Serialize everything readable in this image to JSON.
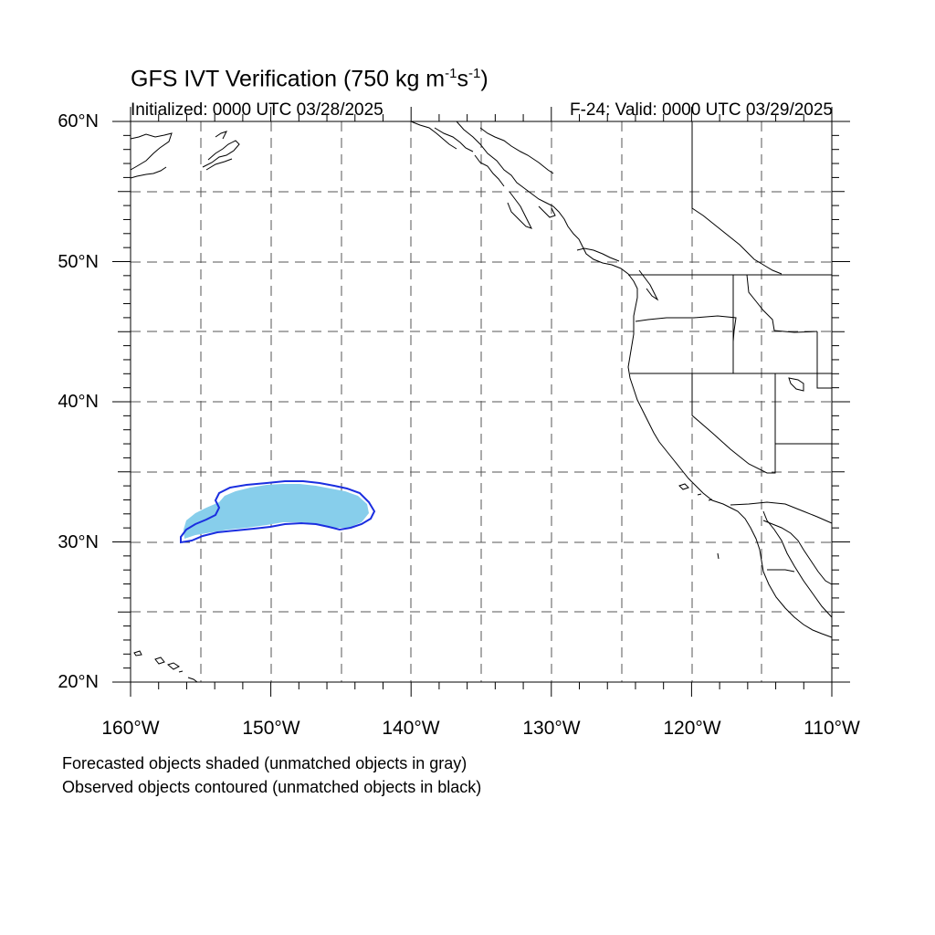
{
  "title": {
    "text_prefix": "GFS IVT Verification (750 kg m",
    "exp1": "-1",
    "text_mid": "s",
    "exp2": "-1",
    "text_suffix": ")"
  },
  "subtitle": {
    "initialized": "Initialized: 0000 UTC 03/28/2025",
    "valid": "F-24: Valid: 0000 UTC 03/29/2025"
  },
  "axes": {
    "lat_labels": [
      "60°N",
      "50°N",
      "40°N",
      "30°N",
      "20°N"
    ],
    "lon_labels": [
      "160°W",
      "150°W",
      "140°W",
      "130°W",
      "120°W",
      "110°W"
    ],
    "lat_range": [
      20,
      60
    ],
    "lon_range": [
      -160,
      -110
    ]
  },
  "legend": {
    "line1": "Forecasted objects shaded (unmatched objects in gray)",
    "line2": "Observed objects contoured (unmatched objects in black)"
  },
  "colors": {
    "forecast_fill": "#87ceeb",
    "observed_contour": "#1a2ee0",
    "coastline": "#000000",
    "grid": "#555555"
  }
}
